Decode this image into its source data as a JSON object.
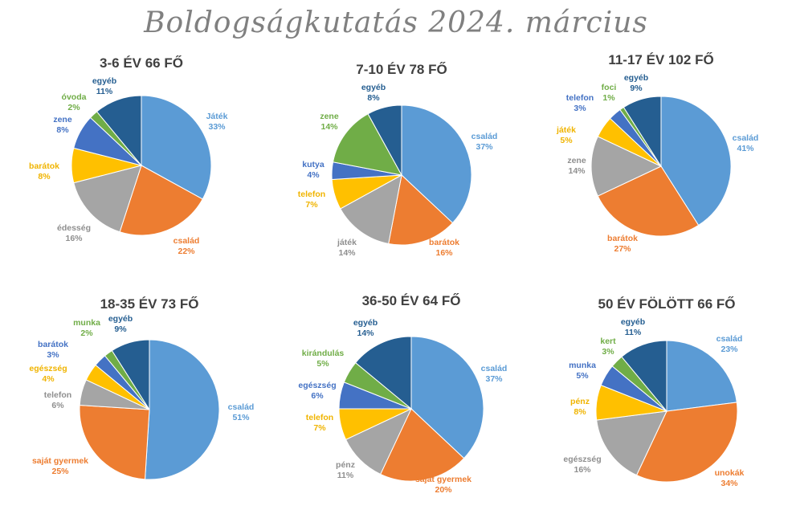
{
  "title": "Boldogságkutatás 2024. március",
  "colors": [
    "#5B9BD5",
    "#ED7D31",
    "#A5A5A5",
    "#FFC000",
    "#4472C4",
    "#70AD47",
    "#255E91"
  ],
  "chart_data": [
    {
      "type": "pie",
      "title": "3-6 ÉV 66 FŐ",
      "labels": [
        "Játék",
        "család",
        "édesség",
        "barátok",
        "zene",
        "óvoda",
        "egyéb"
      ],
      "values": [
        33,
        22,
        16,
        8,
        8,
        2,
        11
      ]
    },
    {
      "type": "pie",
      "title": "7-10 ÉV 78 FŐ",
      "labels": [
        "család",
        "barátok",
        "játék",
        "telefon",
        "kutya",
        "zene",
        "egyéb"
      ],
      "values": [
        37,
        16,
        14,
        7,
        4,
        14,
        8
      ]
    },
    {
      "type": "pie",
      "title": "11-17 ÉV 102 FŐ",
      "labels": [
        "család",
        "barátok",
        "zene",
        "játék",
        "telefon",
        "foci",
        "egyéb"
      ],
      "values": [
        41,
        27,
        14,
        5,
        3,
        1,
        9
      ]
    },
    {
      "type": "pie",
      "title": "18-35 ÉV 73 FŐ",
      "labels": [
        "család",
        "saját gyermek",
        "telefon",
        "egészség",
        "barátok",
        "munka",
        "egyéb"
      ],
      "values": [
        51,
        25,
        6,
        4,
        3,
        2,
        9
      ]
    },
    {
      "type": "pie",
      "title": "36-50 ÉV 64 FŐ",
      "labels": [
        "család",
        "saját gyermek",
        "pénz",
        "telefon",
        "egészség",
        "kirándulás",
        "egyéb"
      ],
      "values": [
        37,
        20,
        11,
        7,
        6,
        5,
        14
      ]
    },
    {
      "type": "pie",
      "title": "50 ÉV FÖLÖTT 66 FŐ",
      "labels": [
        "család",
        "unokák",
        "egészség",
        "pénz",
        "munka",
        "kert",
        "egyéb"
      ],
      "values": [
        23,
        34,
        16,
        8,
        5,
        3,
        11
      ]
    }
  ]
}
